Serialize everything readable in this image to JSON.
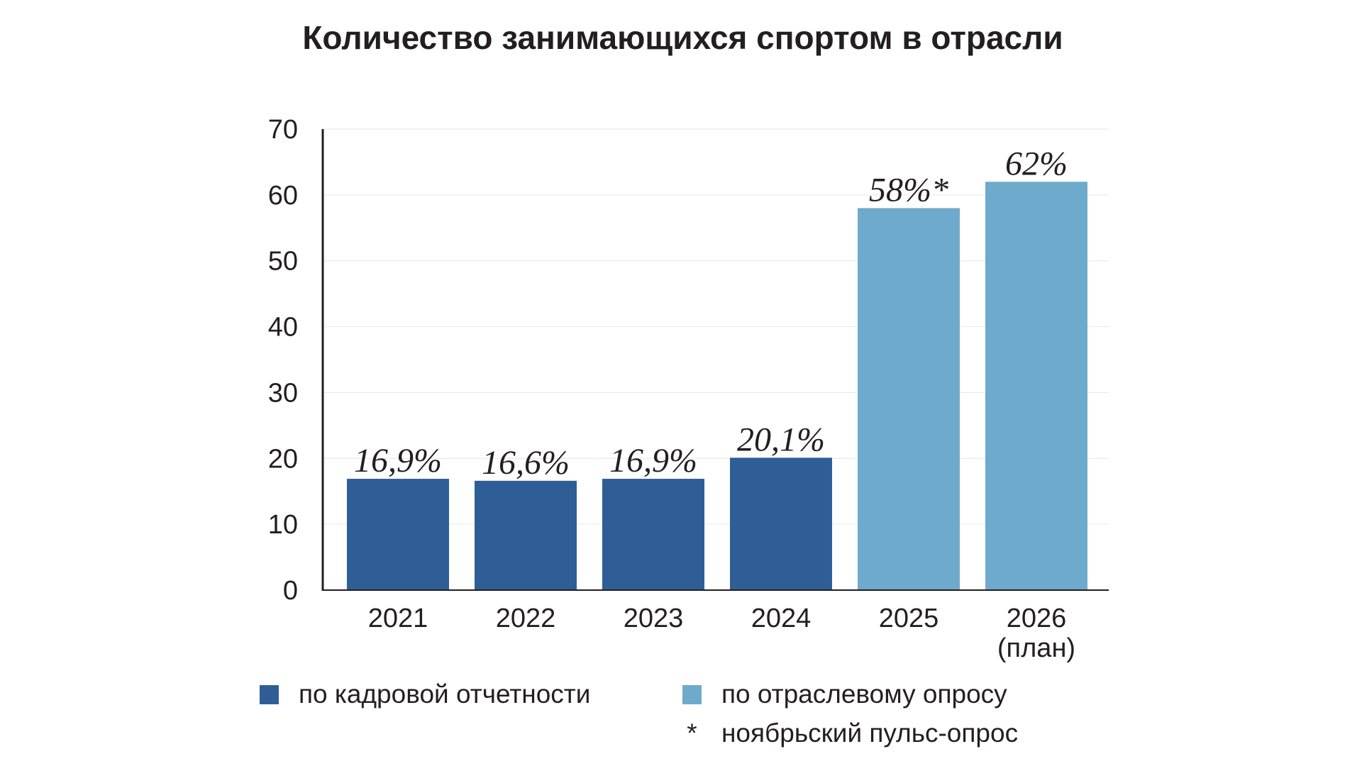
{
  "chart_data": {
    "type": "bar",
    "title": "Количество занимающихся спортом в отрасли",
    "categories": [
      "2021",
      "2022",
      "2023",
      "2024",
      "2025",
      "2026"
    ],
    "category_sublabels": [
      "",
      "",
      "",
      "",
      "",
      "(план)"
    ],
    "values": [
      16.9,
      16.6,
      16.9,
      20.1,
      58,
      62
    ],
    "data_labels": [
      "16,9%",
      "16,6%",
      "16,9%",
      "20,1%",
      "58%*",
      "62%"
    ],
    "series_index": [
      0,
      0,
      0,
      0,
      1,
      1
    ],
    "series": [
      {
        "name": "по кадровой отчетности",
        "color": "#2f5e97"
      },
      {
        "name": "по отраслевому опросу",
        "color": "#6eaacb"
      }
    ],
    "footnote": {
      "marker": "*",
      "text": "ноябрьский пульс-опрос"
    },
    "ylim": [
      0,
      70
    ],
    "yticks": [
      "0",
      "10",
      "20",
      "30",
      "40",
      "50",
      "60",
      "70"
    ],
    "xlabel": "",
    "ylabel": "",
    "grid": true,
    "legend_position": "bottom"
  }
}
